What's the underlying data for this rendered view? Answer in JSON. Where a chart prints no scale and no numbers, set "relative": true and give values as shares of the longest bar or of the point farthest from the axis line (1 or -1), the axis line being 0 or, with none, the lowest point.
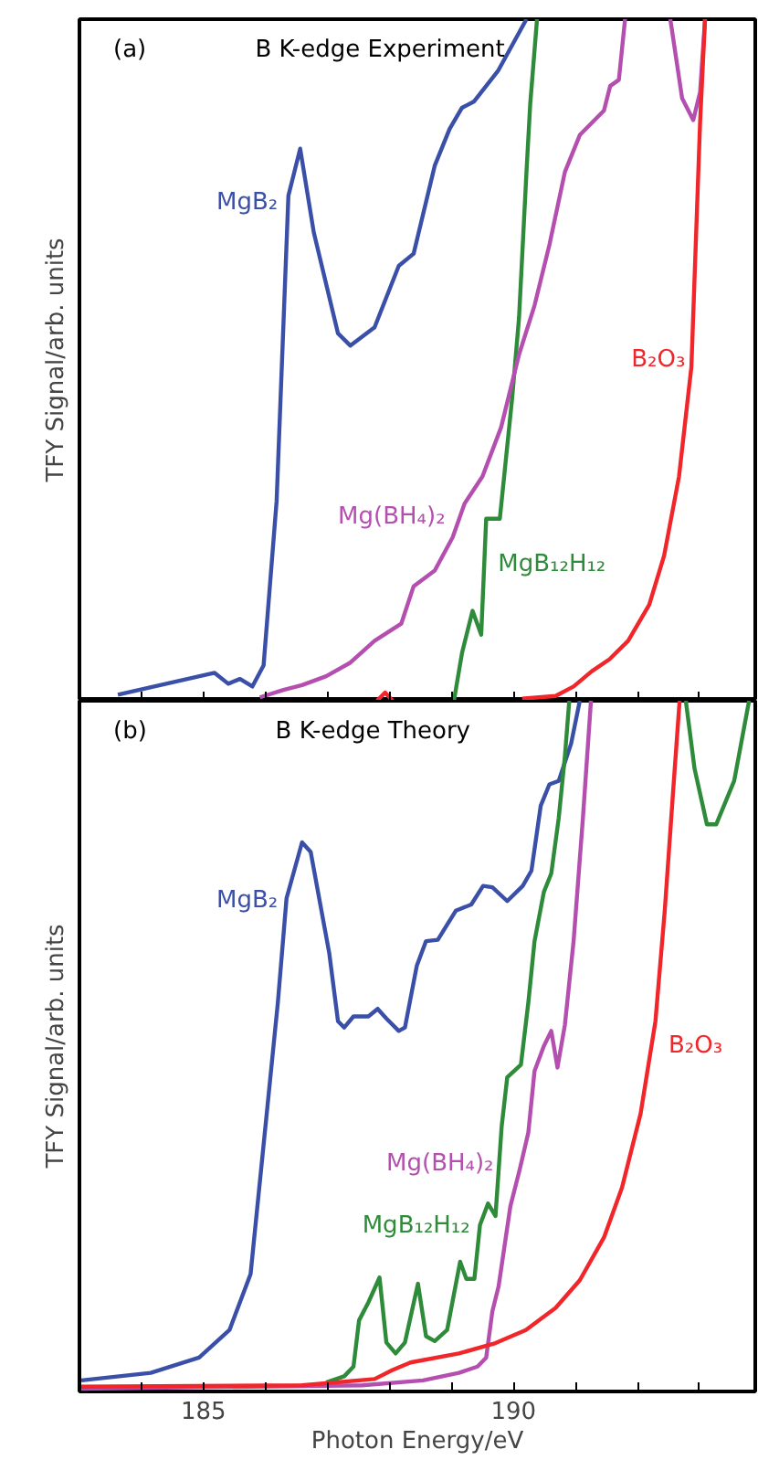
{
  "chart_data": [
    {
      "type": "line",
      "title": "B K-edge Experiment",
      "annotations": [
        "(a)"
      ],
      "ylabel": "TFY Signal/arb. units",
      "relative": true,
      "tick_labels": false,
      "xlim": [
        183,
        193.9
      ],
      "xticks": [
        {
          "value": 184,
          "label": null
        },
        {
          "value": 185,
          "label": null
        },
        {
          "value": 186,
          "label": null
        },
        {
          "value": 187,
          "label": null
        },
        {
          "value": 188,
          "label": null
        },
        {
          "value": 189,
          "label": null
        },
        {
          "value": 190,
          "label": null
        },
        {
          "value": 191,
          "label": null
        },
        {
          "value": 192,
          "label": null
        },
        {
          "value": 193,
          "label": null
        }
      ],
      "grid": false,
      "series": [
        {
          "name": "MgB₂",
          "color": "#3a4fa8",
          "x": [
            183.62,
            185.18,
            185.4,
            185.59,
            185.79,
            185.97,
            186.18,
            186.37,
            186.56,
            186.78,
            187.17,
            187.37,
            187.76,
            188.15,
            188.39,
            188.73,
            188.97,
            189.17,
            189.36,
            189.75,
            190.21
          ],
          "values": [
            0.009,
            0.041,
            0.025,
            0.032,
            0.021,
            0.052,
            0.293,
            0.741,
            0.81,
            0.687,
            0.539,
            0.521,
            0.548,
            0.638,
            0.656,
            0.785,
            0.839,
            0.87,
            0.879,
            0.924,
            1.0
          ]
        },
        {
          "name": "MgB₁₂H₁₂",
          "color": "#2e8b3a",
          "x": [
            189.04,
            189.17,
            189.34,
            189.48,
            189.56,
            189.78,
            189.98,
            190.09,
            190.21,
            190.27,
            190.38
          ],
          "values": [
            0,
            0.07,
            0.132,
            0.097,
            0.267,
            0.267,
            0.445,
            0.562,
            0.776,
            0.875,
            1.0
          ]
        },
        {
          "name": "Mg(BH₄)₂",
          "color": "#b44fb0",
          "x": [
            185.91,
            186.29,
            186.59,
            186.98,
            187.37,
            187.76,
            188.19,
            188.39,
            188.73,
            189.02,
            189.21,
            189.5,
            189.8,
            190.09,
            190.34,
            190.58,
            190.83,
            191.07,
            191.46,
            191.56,
            191.7,
            191.8,
            192.2,
            192.53,
            192.72,
            192.9,
            193.01,
            193.09
          ],
          "values": [
            0.005,
            0.016,
            0.023,
            0.036,
            0.056,
            0.088,
            0.113,
            0.168,
            0.191,
            0.24,
            0.289,
            0.329,
            0.401,
            0.508,
            0.58,
            0.669,
            0.776,
            0.83,
            0.866,
            0.902,
            0.911,
            1.0,
            null,
            1.0,
            0.884,
            0.852,
            0.893,
            1.0
          ]
        },
        {
          "name": "B₂O₃",
          "color": "#f0262a",
          "x": [
            187.8,
            187.93,
            188.05,
            189.0,
            190.14,
            190.68,
            190.97,
            191.26,
            191.55,
            191.85,
            192.19,
            192.43,
            192.67,
            192.87,
            193.01,
            193.09
          ],
          "values": [
            0,
            0.012,
            0,
            null,
            0.003,
            0.007,
            0.021,
            0.043,
            0.061,
            0.088,
            0.141,
            0.213,
            0.329,
            0.49,
            0.848,
            1.0
          ]
        }
      ]
    },
    {
      "type": "line",
      "title": "B K-edge Theory",
      "annotations": [
        "(b)"
      ],
      "xlabel": "Photon Energy/eV",
      "ylabel": "TFY Signal/arb. units",
      "relative": true,
      "tick_labels": "x",
      "xlim": [
        183,
        193.9
      ],
      "xticks": [
        {
          "value": 184,
          "label": null
        },
        185,
        {
          "value": 186,
          "label": null
        },
        {
          "value": 187,
          "label": null
        },
        {
          "value": 188,
          "label": null
        },
        {
          "value": 189,
          "label": null
        },
        190,
        {
          "value": 191,
          "label": null
        },
        {
          "value": 192,
          "label": null
        },
        {
          "value": 193,
          "label": null
        }
      ],
      "grid": false,
      "series": [
        {
          "name": "MgB₂",
          "color": "#3a4fa8",
          "x": [
            183.03,
            184.15,
            184.93,
            185.42,
            185.76,
            186.0,
            186.2,
            186.34,
            186.59,
            186.73,
            187.03,
            187.17,
            187.27,
            187.42,
            187.66,
            187.81,
            187.95,
            188.15,
            188.25,
            188.44,
            188.59,
            188.78,
            189.07,
            189.32,
            189.51,
            189.66,
            189.9,
            190.15,
            190.29,
            190.44,
            190.58,
            190.73,
            190.93,
            191.07
          ],
          "values": [
            0.016,
            0.027,
            0.049,
            0.089,
            0.17,
            0.384,
            0.563,
            0.714,
            0.795,
            0.781,
            0.634,
            0.536,
            0.527,
            0.543,
            0.543,
            0.554,
            0.54,
            0.522,
            0.527,
            0.616,
            0.652,
            0.654,
            0.696,
            0.705,
            0.732,
            0.73,
            0.71,
            0.732,
            0.754,
            0.848,
            0.879,
            0.884,
            0.938,
            1.0
          ]
        },
        {
          "name": "MgB₁₂H₁₂",
          "color": "#2e8b3a",
          "x": [
            186.98,
            187.27,
            187.42,
            187.51,
            187.66,
            187.84,
            187.95,
            188.1,
            188.25,
            188.46,
            188.59,
            188.73,
            188.93,
            189.14,
            189.24,
            189.37,
            189.46,
            189.59,
            189.71,
            189.81,
            189.9,
            190.12,
            190.24,
            190.34,
            190.49,
            190.61,
            190.73,
            190.83,
            190.9,
            191.8,
            192.78,
            192.92,
            193.12,
            193.27,
            193.56,
            193.8
          ],
          "values": [
            0.013,
            0.022,
            0.036,
            0.103,
            0.129,
            0.165,
            0.071,
            0.055,
            0.071,
            0.156,
            0.08,
            0.073,
            0.089,
            0.188,
            0.163,
            0.163,
            0.241,
            0.272,
            0.254,
            0.384,
            0.455,
            0.473,
            0.563,
            0.652,
            0.723,
            0.75,
            0.83,
            0.92,
            1.0,
            null,
            1.0,
            0.902,
            0.821,
            0.821,
            0.884,
            1.0
          ]
        },
        {
          "name": "Mg(BH₄)₂",
          "color": "#b44fb0",
          "x": [
            183.03,
            187.56,
            188.54,
            189.12,
            189.42,
            189.56,
            189.66,
            189.76,
            189.95,
            190.1,
            190.24,
            190.34,
            190.49,
            190.61,
            190.71,
            190.83,
            190.97,
            191.12,
            191.25
          ],
          "values": [
            0.004,
            0.009,
            0.016,
            0.027,
            0.036,
            0.049,
            0.116,
            0.152,
            0.268,
            0.321,
            0.375,
            0.464,
            0.5,
            0.522,
            0.469,
            0.531,
            0.652,
            0.83,
            1.0
          ]
        },
        {
          "name": "B₂O₃",
          "color": "#f0262a",
          "x": [
            183.03,
            186.59,
            187.76,
            188.05,
            188.34,
            189.12,
            189.71,
            190.2,
            190.68,
            191.07,
            191.46,
            191.75,
            192.05,
            192.29,
            192.44,
            192.58,
            192.68
          ],
          "values": [
            0.007,
            0.009,
            0.018,
            0.031,
            0.042,
            0.055,
            0.07,
            0.089,
            0.121,
            0.161,
            0.223,
            0.295,
            0.402,
            0.536,
            0.696,
            0.875,
            1.0
          ]
        }
      ]
    }
  ]
}
